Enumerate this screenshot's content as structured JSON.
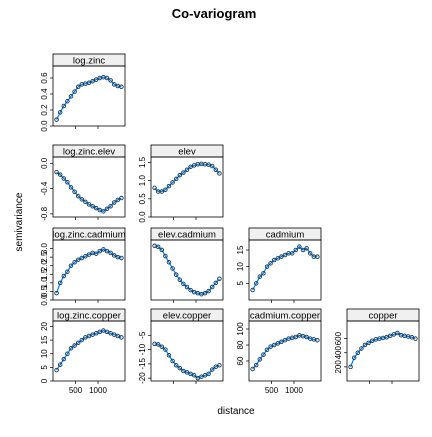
{
  "chart_data": {
    "type": "line",
    "title": "Co-variogram",
    "xlabel": "distance",
    "ylabel": "semivariance",
    "xlim": [
      0,
      1600
    ],
    "x_ticks": [
      500,
      1000
    ],
    "x_tick_labels": [
      "500",
      "1000"
    ],
    "distance": [
      80,
      160,
      240,
      320,
      400,
      480,
      560,
      640,
      720,
      800,
      880,
      960,
      1040,
      1120,
      1200,
      1280,
      1360,
      1440,
      1520
    ],
    "panels": [
      {
        "name": "log.zinc",
        "row": 0,
        "col": 0,
        "ylim": [
          0,
          0.75
        ],
        "y_ticks": [
          0,
          0.2,
          0.4,
          0.6
        ],
        "y_tick_labels": [
          "0.0",
          "0.2",
          "0.4",
          "0.6"
        ],
        "y_tick_left": true,
        "values": [
          0.08,
          0.17,
          0.25,
          0.31,
          0.37,
          0.43,
          0.49,
          0.52,
          0.53,
          0.54,
          0.56,
          0.58,
          0.6,
          0.61,
          0.6,
          0.57,
          0.52,
          0.5,
          0.49
        ]
      },
      {
        "name": "log.zinc.elev",
        "row": 1,
        "col": 0,
        "ylim": [
          -0.85,
          0.1
        ],
        "y_ticks": [
          0,
          -0.4,
          -0.8
        ],
        "y_tick_labels": [
          "0.0",
          "-0.4",
          "-0.8"
        ],
        "y_tick_left": true,
        "values": [
          -0.14,
          -0.18,
          -0.24,
          -0.3,
          -0.38,
          -0.45,
          -0.52,
          -0.57,
          -0.61,
          -0.65,
          -0.68,
          -0.71,
          -0.74,
          -0.76,
          -0.72,
          -0.68,
          -0.62,
          -0.58,
          -0.55
        ]
      },
      {
        "name": "elev",
        "row": 1,
        "col": 1,
        "ylim": [
          0,
          1.65
        ],
        "y_ticks": [
          0,
          0.5,
          1.0,
          1.5
        ],
        "y_tick_labels": [
          "0.0",
          "0.5",
          "1.0",
          "1.5"
        ],
        "y_tick_left": false,
        "values": [
          0.8,
          0.7,
          0.7,
          0.75,
          0.85,
          0.95,
          1.05,
          1.15,
          1.22,
          1.3,
          1.38,
          1.42,
          1.45,
          1.46,
          1.45,
          1.44,
          1.4,
          1.3,
          1.2
        ]
      },
      {
        "name": "log.zinc.cadmium",
        "row": 2,
        "col": 0,
        "ylim": [
          0,
          3.5
        ],
        "y_ticks": [
          0,
          0.5,
          1.0,
          1.5,
          2.0,
          2.5,
          3.0
        ],
        "y_tick_labels": [
          "0.0",
          "0.5",
          "1.0",
          "1.5",
          "2.0",
          "2.5",
          "3.0"
        ],
        "y_tick_left": true,
        "values": [
          0.4,
          1.0,
          1.4,
          1.65,
          2.0,
          2.2,
          2.35,
          2.45,
          2.55,
          2.65,
          2.75,
          2.7,
          2.85,
          2.95,
          2.85,
          2.75,
          2.6,
          2.5,
          2.45
        ]
      },
      {
        "name": "elev.cadmium",
        "row": 2,
        "col": 1,
        "y_tick_left": false,
        "values": [
          -0.1,
          -0.11,
          -0.14,
          -0.2,
          -0.26,
          -0.32,
          -0.38,
          -0.43,
          -0.47,
          -0.5,
          -0.53,
          -0.55,
          -0.56,
          -0.57,
          -0.56,
          -0.54,
          -0.5,
          -0.46,
          -0.42
        ]
      },
      {
        "name": "cadmium",
        "row": 2,
        "col": 2,
        "ylim": [
          0,
          18
        ],
        "y_ticks": [
          5,
          10,
          15
        ],
        "y_tick_labels": [
          "5",
          "10",
          "15"
        ],
        "y_tick_left": false,
        "values": [
          3,
          5,
          7,
          8,
          10,
          11,
          12,
          12.5,
          13,
          13.5,
          14,
          14,
          15,
          16,
          15,
          15.5,
          14,
          13,
          13
        ]
      },
      {
        "name": "log.zinc.copper",
        "row": 3,
        "col": 0,
        "ylim": [
          0,
          22
        ],
        "y_ticks": [
          0,
          5,
          10,
          15,
          20
        ],
        "y_tick_labels": [
          "0",
          "5",
          "10",
          "15",
          "20"
        ],
        "y_tick_left": true,
        "values": [
          4,
          6,
          8,
          10,
          12,
          13,
          14,
          15,
          16,
          16.5,
          17,
          17.5,
          18,
          18.5,
          18,
          17.5,
          17,
          16.5,
          16
        ]
      },
      {
        "name": "elev.copper",
        "row": 3,
        "col": 1,
        "ylim": [
          -21,
          0
        ],
        "y_ticks": [
          -5,
          -10,
          -15,
          -20
        ],
        "y_tick_labels": [
          "-5",
          "-10",
          "-15",
          "-20"
        ],
        "y_tick_left": false,
        "values": [
          -8,
          -8.2,
          -9,
          -10,
          -12,
          -14,
          -15.5,
          -16.5,
          -17.5,
          -18,
          -18.5,
          -19,
          -20,
          -19.5,
          -19,
          -18.5,
          -17,
          -16,
          -15.5
        ]
      },
      {
        "name": "cadmium.copper",
        "row": 3,
        "col": 2,
        "ylim": [
          35,
          110
        ],
        "y_ticks": [
          60,
          80,
          100
        ],
        "y_tick_labels": [
          "60",
          "80",
          "100"
        ],
        "y_tick_left": false,
        "values": [
          50,
          55,
          62,
          68,
          74,
          78,
          80,
          82,
          84,
          86,
          88,
          89,
          90,
          92,
          91,
          90,
          88,
          87,
          86
        ]
      },
      {
        "name": "copper",
        "row": 3,
        "col": 3,
        "ylim": [
          0,
          850
        ],
        "y_ticks": [
          200,
          400,
          600
        ],
        "y_tick_labels": [
          "200",
          "400",
          "600"
        ],
        "y_tick_left": false,
        "values": [
          200,
          330,
          400,
          460,
          510,
          540,
          570,
          590,
          600,
          610,
          620,
          640,
          660,
          680,
          650,
          640,
          630,
          620,
          600
        ]
      }
    ],
    "colors": {
      "line": "#0080ff",
      "point": "#1a3a4a",
      "strip": "#f0f0f0",
      "frame": "#000000"
    },
    "grid": false,
    "legend": "none"
  }
}
